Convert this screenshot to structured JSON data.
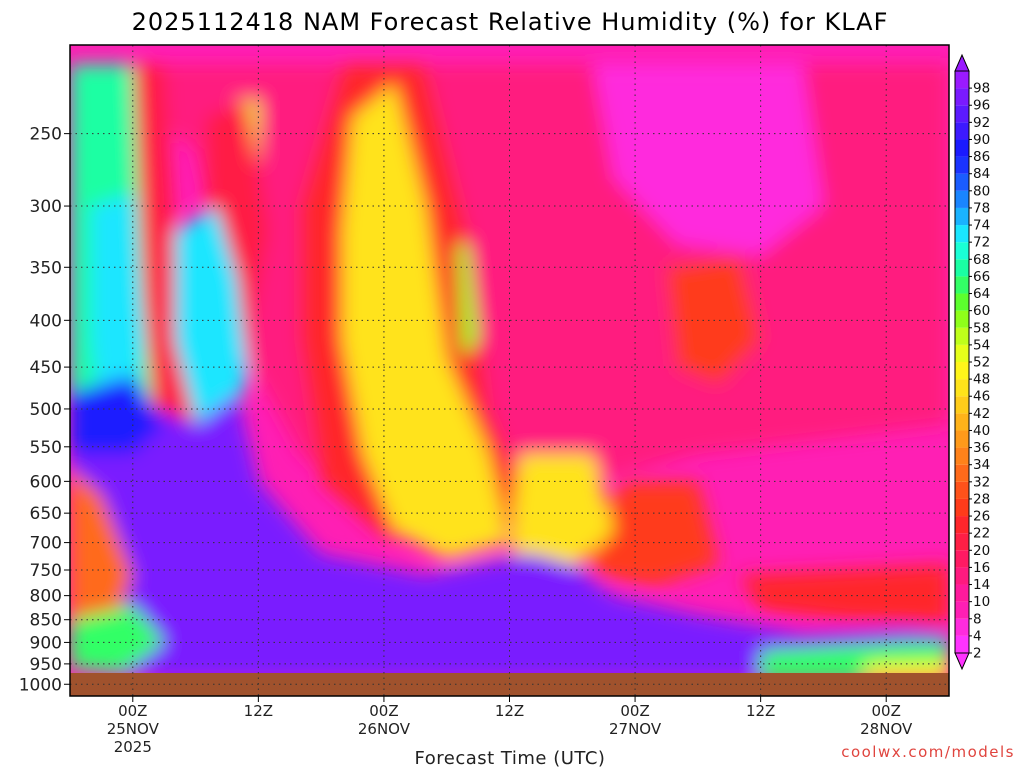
{
  "header": {
    "title": "2025112418 NAM Forecast Relative Humidity (%) for KLAF"
  },
  "credit": "coolwx.com/models",
  "chart_data": {
    "type": "heatmap",
    "title": "2025112418 NAM Forecast Relative Humidity (%) for KLAF",
    "xlabel": "Forecast Time (UTC)",
    "ylabel": "",
    "x_axis": {
      "range_hours_from_init": [
        0,
        84
      ],
      "log_scale": false,
      "ticks": [
        {
          "hour": 6,
          "label": "00Z",
          "sub1": "25NOV",
          "sub2": "2025"
        },
        {
          "hour": 18,
          "label": "12Z",
          "sub1": "",
          "sub2": ""
        },
        {
          "hour": 30,
          "label": "00Z",
          "sub1": "26NOV",
          "sub2": ""
        },
        {
          "hour": 42,
          "label": "12Z",
          "sub1": "",
          "sub2": ""
        },
        {
          "hour": 54,
          "label": "00Z",
          "sub1": "27NOV",
          "sub2": ""
        },
        {
          "hour": 66,
          "label": "12Z",
          "sub1": "",
          "sub2": ""
        },
        {
          "hour": 78,
          "label": "00Z",
          "sub1": "28NOV",
          "sub2": ""
        }
      ]
    },
    "y_axis": {
      "units": "hPa",
      "inverted": true,
      "log_scale": true,
      "range": [
        1030,
        200
      ],
      "ticks": [
        250,
        300,
        350,
        400,
        450,
        500,
        550,
        600,
        650,
        700,
        750,
        800,
        850,
        900,
        950,
        1000
      ]
    },
    "grid": "dotted",
    "colorbar": {
      "placement": "right",
      "levels": [
        2,
        4,
        8,
        10,
        14,
        16,
        20,
        22,
        26,
        28,
        32,
        34,
        36,
        40,
        42,
        46,
        48,
        52,
        54,
        58,
        60,
        64,
        66,
        68,
        72,
        74,
        78,
        80,
        84,
        86,
        90,
        92,
        96,
        98
      ],
      "colors": [
        "#ff33ff",
        "#ff2bdd",
        "#ff1fb4",
        "#ff1a9c",
        "#ff1a7f",
        "#ff1a63",
        "#ff1f45",
        "#ff262b",
        "#ff3b1a",
        "#ff521a",
        "#ff6a1a",
        "#ff821a",
        "#ff9a1a",
        "#ffb31a",
        "#ffcc1a",
        "#ffe31a",
        "#fff51a",
        "#e6ff1a",
        "#bfff1a",
        "#8fff1a",
        "#5cff2e",
        "#33ff66",
        "#1affa3",
        "#1affd6",
        "#1ae6ff",
        "#1ab3ff",
        "#1a85ff",
        "#1a5cff",
        "#1a33ff",
        "#1a1aff",
        "#3d1aff",
        "#5c1aff",
        "#7a1aff",
        "#9a1aff"
      ]
    },
    "surface_color": "#a0522d",
    "features": [
      {
        "description_key": "moist_lower_layer_hours_0_40_pressure_500_950",
        "rh_percent": 92
      },
      {
        "description_key": "dry_upper_air_hours_40_84",
        "rh_percent": 6
      },
      {
        "description_key": "moist_boundary_layer_hours_44_84_pressure_800_950",
        "rh_percent": 92
      }
    ]
  }
}
